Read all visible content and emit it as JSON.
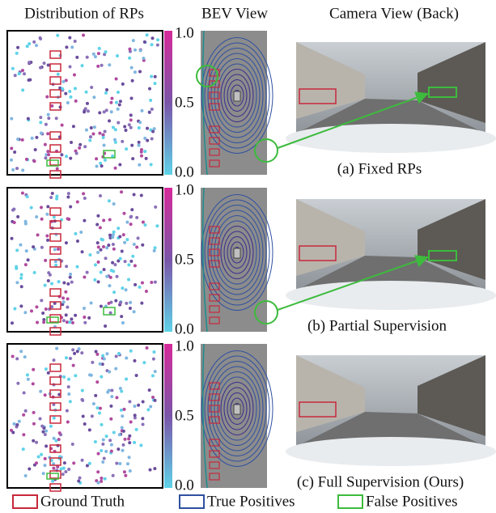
{
  "headers": [
    "Distribution of RPs",
    "BEV View",
    "Camera View (Back)"
  ],
  "colorbar_ticks": [
    "1.0",
    "0.5",
    "0.0"
  ],
  "rows": [
    {
      "caption": "(a) Fixed RPs"
    },
    {
      "caption": "(b) Partial Supervision"
    },
    {
      "caption": "(c) Full Supervision (Ours)"
    }
  ],
  "legend": [
    "Ground Truth",
    "True Positives",
    "False Positives"
  ]
}
